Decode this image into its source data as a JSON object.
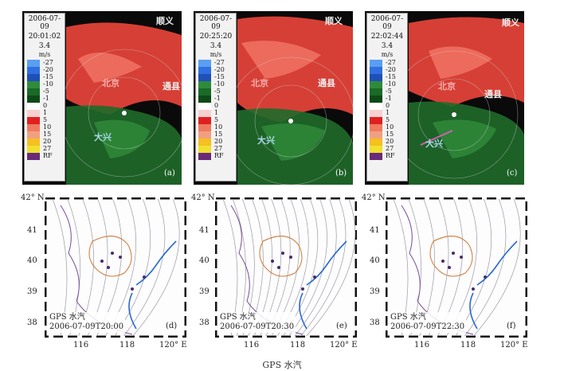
{
  "radar_panels": [
    {
      "timestamp": "2006-07-09",
      "time": "20:01:02",
      "elev": "3.4",
      "unit": "m/s",
      "label": "(a)"
    },
    {
      "timestamp": "2006-07-09",
      "time": "20:25:20",
      "elev": "3.4",
      "unit": "m/s",
      "label": "(b)"
    },
    {
      "timestamp": "2006-07-09",
      "time": "22:02:44",
      "elev": "3.4",
      "unit": "m/s",
      "label": "(c)"
    }
  ],
  "velocity_scale": [
    {
      "value": "-27",
      "color": "#5a9ef0"
    },
    {
      "value": "-20",
      "color": "#2f6fe0"
    },
    {
      "value": "-15",
      "color": "#1f4fb8"
    },
    {
      "value": "-10",
      "color": "#2e8b3a"
    },
    {
      "value": "-5",
      "color": "#1a6a28"
    },
    {
      "value": "-1",
      "color": "#0e4a18"
    },
    {
      "value": "0",
      "color": "#ffffff"
    },
    {
      "value": "1",
      "color": "#f7d0d0"
    },
    {
      "value": "5",
      "color": "#e02020"
    },
    {
      "value": "10",
      "color": "#f07a60"
    },
    {
      "value": "15",
      "color": "#f0a080"
    },
    {
      "value": "20",
      "color": "#f5c020"
    },
    {
      "value": "27",
      "color": "#f0e030"
    },
    {
      "value": "RF",
      "color": "#6a2a7a"
    }
  ],
  "place_labels": {
    "shunyi": "顺义",
    "beijing": "北京",
    "tongxian": "通县",
    "daxing": "大兴"
  },
  "map_panels": [
    {
      "title": "GPS 水汽",
      "time": "2006-07-09T20:00",
      "label": "(d)"
    },
    {
      "title": "GPS 水汽",
      "time": "2006-07-09T20:30",
      "label": "(e)"
    },
    {
      "title": "GPS 水汽",
      "time": "2006-07-09T22:30",
      "label": "(f)"
    }
  ],
  "map_axes": {
    "lat_ticks": [
      "42° N",
      "41",
      "40",
      "39",
      "38"
    ],
    "lon_ticks": [
      "116",
      "118",
      "120° E"
    ]
  },
  "caption": "GPS 水汽"
}
